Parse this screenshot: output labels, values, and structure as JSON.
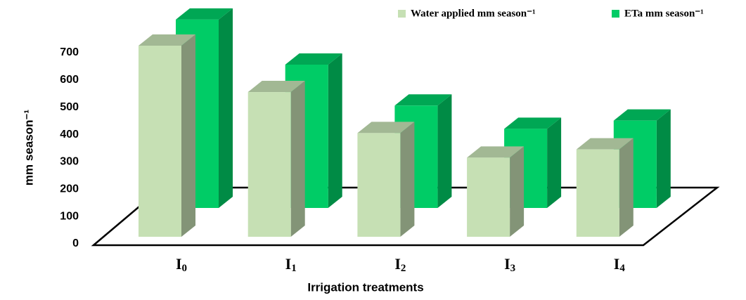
{
  "chart_data": {
    "type": "bar3d",
    "categories": [
      "I0",
      "I1",
      "I2",
      "I3",
      "I4"
    ],
    "series": [
      {
        "name": "Water applied mm season⁻¹",
        "color": "#c6e0b4",
        "values": [
          700,
          530,
          380,
          290,
          320
        ]
      },
      {
        "name": "ETa mm  season⁻¹",
        "color": "#00cc66",
        "values": [
          690,
          525,
          375,
          290,
          320
        ]
      }
    ],
    "y_label": "mm  season⁻¹",
    "x_label": "Irrigation treatments",
    "ylim": [
      0,
      700
    ],
    "yticks": [
      0,
      100,
      200,
      300,
      400,
      500,
      600,
      700
    ]
  }
}
